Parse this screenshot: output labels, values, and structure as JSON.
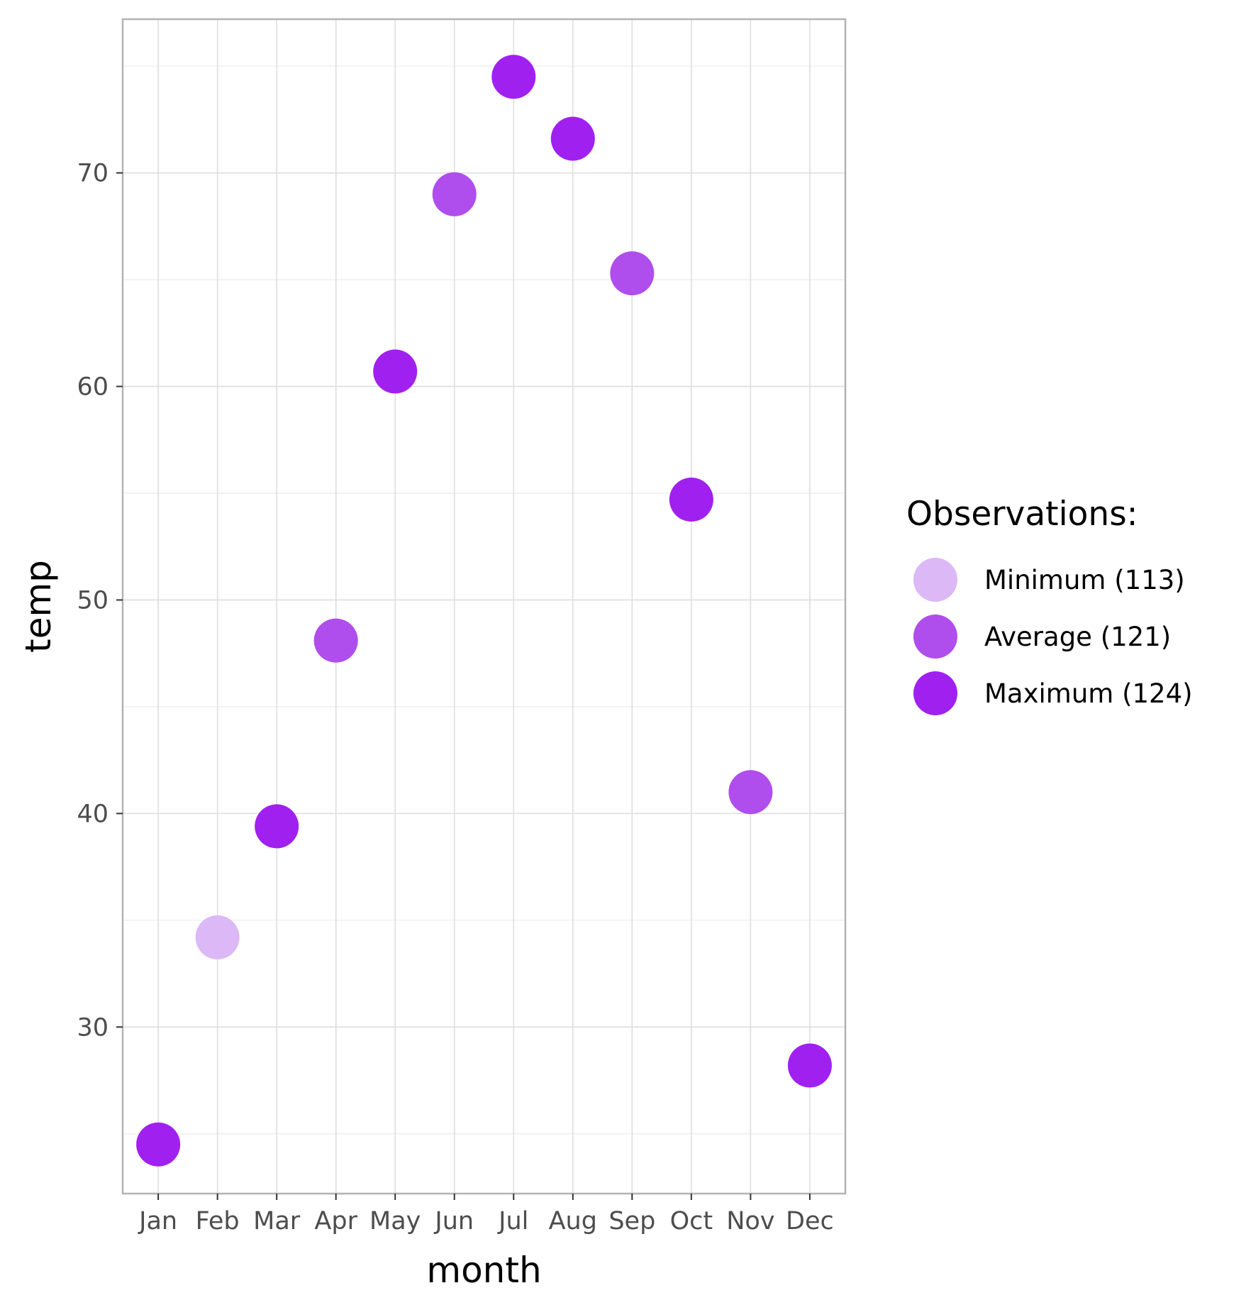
{
  "chart_data": {
    "type": "scatter",
    "title": "",
    "xlabel": "month",
    "ylabel": "temp",
    "categories": [
      "Jan",
      "Feb",
      "Mar",
      "Apr",
      "May",
      "Jun",
      "Jul",
      "Aug",
      "Sep",
      "Oct",
      "Nov",
      "Dec"
    ],
    "yticks": [
      30,
      40,
      50,
      60,
      70
    ],
    "ylim": [
      22.2,
      77.2
    ],
    "grid": true,
    "legend": {
      "title": "Observations:",
      "placement": "right",
      "entries": [
        {
          "key": "min",
          "label": "Minimum (113)",
          "color": "#dcb8f7"
        },
        {
          "key": "avg",
          "label": "Average (121)",
          "color": "#b04ded"
        },
        {
          "key": "max",
          "label": "Maximum (124)",
          "color": "#a020f0"
        }
      ]
    },
    "points": [
      {
        "x": "Jan",
        "y": 24.5,
        "group": "max"
      },
      {
        "x": "Feb",
        "y": 34.2,
        "group": "min"
      },
      {
        "x": "Mar",
        "y": 39.4,
        "group": "max"
      },
      {
        "x": "Apr",
        "y": 48.1,
        "group": "avg"
      },
      {
        "x": "May",
        "y": 60.7,
        "group": "max"
      },
      {
        "x": "Jun",
        "y": 69.0,
        "group": "avg"
      },
      {
        "x": "Jul",
        "y": 74.5,
        "group": "max"
      },
      {
        "x": "Aug",
        "y": 71.6,
        "group": "max"
      },
      {
        "x": "Sep",
        "y": 65.3,
        "group": "avg"
      },
      {
        "x": "Oct",
        "y": 54.7,
        "group": "max"
      },
      {
        "x": "Nov",
        "y": 41.0,
        "group": "avg"
      },
      {
        "x": "Dec",
        "y": 28.2,
        "group": "max"
      }
    ]
  }
}
